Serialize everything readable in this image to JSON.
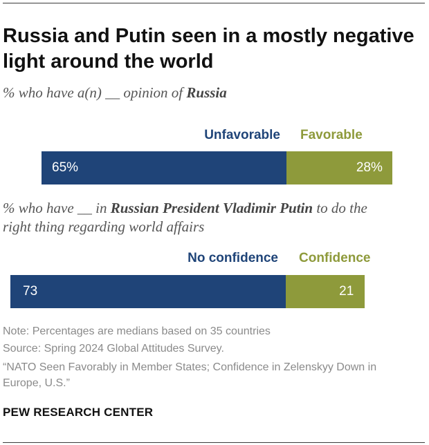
{
  "title": "Russia and Putin seen in a mostly negative light around the world",
  "subtitle_russia": {
    "prefix": "% who have a(n) __ opinion of ",
    "bold": "Russia",
    "suffix": ""
  },
  "subtitle_putin": {
    "prefix": "% who have __ in ",
    "bold": "Russian President Vladimir Putin",
    "suffix": " to do the right thing regarding world affairs"
  },
  "colors": {
    "negative": "#1f4478",
    "positive": "#8e9a3b"
  },
  "chart_data": [
    {
      "type": "bar",
      "orientation": "horizontal-stacked",
      "categories": [
        "Russia"
      ],
      "series": [
        {
          "name": "Unfavorable",
          "values": [
            65
          ],
          "label": "65%",
          "color": "#1f4478"
        },
        {
          "name": "Favorable",
          "values": [
            28
          ],
          "label": "28%",
          "color": "#8e9a3b"
        }
      ]
    },
    {
      "type": "bar",
      "orientation": "horizontal-stacked",
      "categories": [
        "Putin"
      ],
      "series": [
        {
          "name": "No confidence",
          "values": [
            73
          ],
          "label": "73",
          "color": "#1f4478"
        },
        {
          "name": "Confidence",
          "values": [
            21
          ],
          "label": "21",
          "color": "#8e9a3b"
        }
      ]
    }
  ],
  "notes": {
    "note": "Note: Percentages are medians based on 35 countries",
    "source": "Source: Spring 2024 Global Attitudes Survey.",
    "report": "“NATO Seen Favorably in Member States; Confidence in Zelenskyy Down in Europe, U.S.”"
  },
  "brand": "PEW RESEARCH CENTER"
}
